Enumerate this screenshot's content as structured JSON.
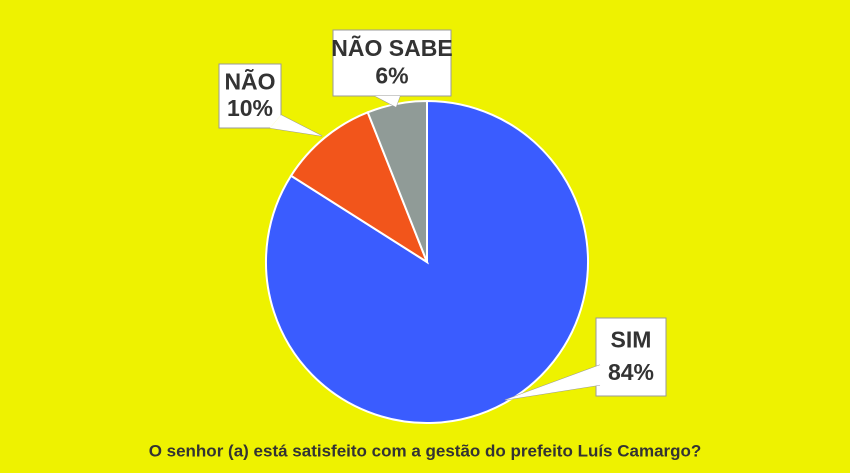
{
  "chart_data": {
    "type": "pie",
    "title": "O senhor (a) está satisfeito com a gestão do prefeito Luís Camargo?",
    "categories": [
      "SIM",
      "NÃO",
      "NÃO SABE"
    ],
    "values": [
      84,
      10,
      6
    ],
    "value_labels": [
      "84%",
      "10%",
      "6%"
    ],
    "colors": [
      "#3a5cff",
      "#f2551b",
      "#909b97"
    ]
  }
}
